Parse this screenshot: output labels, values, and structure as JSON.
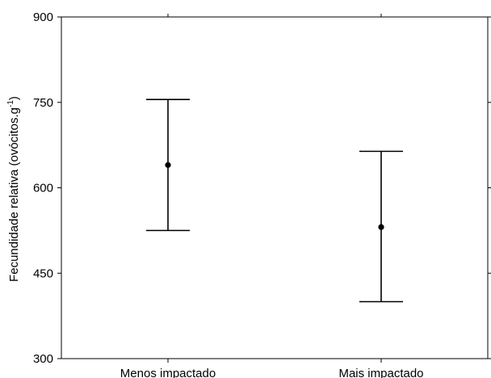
{
  "chart_data": {
    "type": "scatter",
    "categories": [
      "Menos impactado",
      "Mais impactado"
    ],
    "points": [
      {
        "category": "Menos impactado",
        "mean": 640,
        "lower": 525,
        "upper": 755
      },
      {
        "category": "Mais impactado",
        "mean": 531,
        "lower": 400,
        "upper": 664
      }
    ],
    "ylabel_main": "Fecundidade relativa (ovócitos.g",
    "ylabel_sup": "-1",
    "ylabel_close": ")",
    "ylim": [
      300,
      900
    ],
    "yticks": [
      "300",
      "450",
      "600",
      "750",
      "900"
    ],
    "grid": false
  }
}
